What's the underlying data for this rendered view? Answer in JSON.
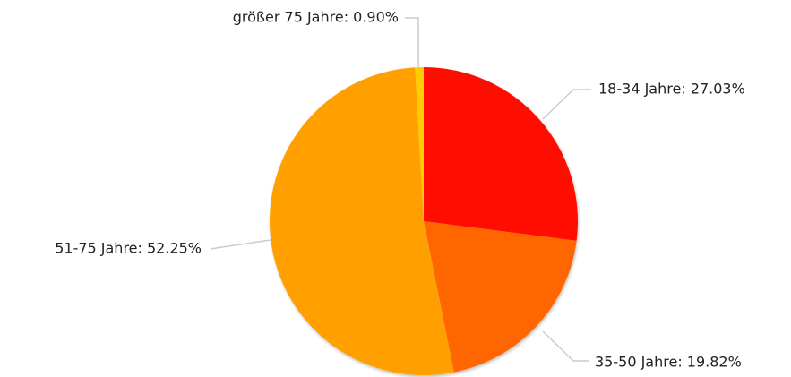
{
  "chart_data": {
    "type": "pie",
    "values": [
      27.03,
      19.82,
      52.25,
      0.9
    ],
    "value_labels": [
      "18-34 Jahre: 27.03%",
      "35-50 Jahre: 19.82%",
      "51-75 Jahre: 52.25%",
      "größer 75 Jahre: 0.90%"
    ],
    "colors": [
      "#ff1100",
      "#ff6600",
      "#ffa000",
      "#ffcc00"
    ]
  }
}
